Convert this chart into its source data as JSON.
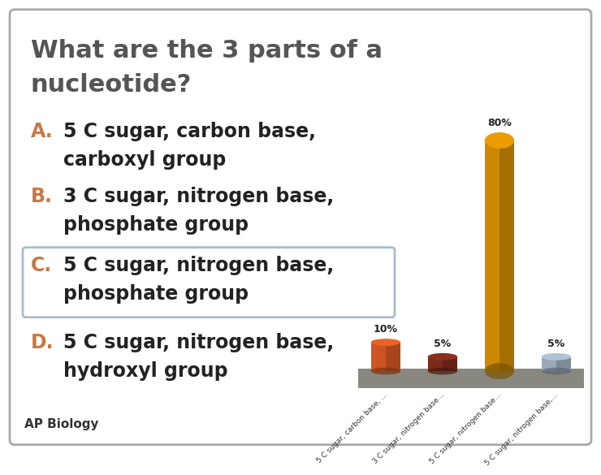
{
  "title_line1": "What are the 3 parts of a",
  "title_line2": "nucleotide?",
  "title_color": "#555555",
  "background_color": "#ffffff",
  "border_color": "#aaaaaa",
  "options": [
    {
      "letter": "A.",
      "text1": "5 C sugar, carbon base,",
      "text2": "carboxyl group",
      "letter_color": "#c87941",
      "highlighted": false
    },
    {
      "letter": "B.",
      "text1": "3 C sugar, nitrogen base,",
      "text2": "phosphate group",
      "letter_color": "#c87941",
      "highlighted": false
    },
    {
      "letter": "C.",
      "text1": "5 C sugar, nitrogen base,",
      "text2": "phosphate group",
      "letter_color": "#c87941",
      "highlighted": true
    },
    {
      "letter": "D.",
      "text1": "5 C sugar, nitrogen base,",
      "text2": "hydroxyl group",
      "letter_color": "#c87941",
      "highlighted": false
    }
  ],
  "footer": "AP Biology",
  "bar_categories": [
    "5 C sugar, carbon base, ...",
    "3 C sugar, nitrogen base...",
    "5 C sugar, nitrogen base...",
    "5 C sugar, nitrogen base,..."
  ],
  "bar_values": [
    10,
    5,
    80,
    5
  ],
  "bar_colors": [
    "#cc5522",
    "#7a2a1a",
    "#cc8800",
    "#99aabb"
  ],
  "bar_labels": [
    "10%",
    "5%",
    "80%",
    "5%"
  ],
  "platform_color": "#888880",
  "highlight_box_color": "#aabbcc",
  "text_color": "#222222"
}
